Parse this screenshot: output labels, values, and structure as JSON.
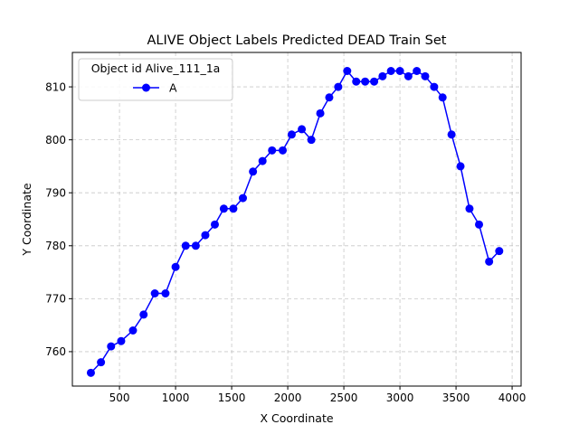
{
  "chart_data": {
    "type": "line",
    "title": "ALIVE Object Labels Predicted DEAD Train Set",
    "xlabel": "X Coordinate",
    "ylabel": "Y Coordinate",
    "xlim": [
      80,
      4080
    ],
    "ylim": [
      753.5,
      816.5
    ],
    "xticks": [
      500,
      1000,
      1500,
      2000,
      2500,
      3000,
      3500,
      4000
    ],
    "yticks": [
      760,
      770,
      780,
      790,
      800,
      810
    ],
    "grid": true,
    "legend": {
      "title": "Object id Alive_111_1a",
      "placement": "top-left"
    },
    "series": [
      {
        "name": "A",
        "color": "#0000ff",
        "marker": "circle",
        "x": [
          245,
          335,
          425,
          515,
          620,
          715,
          815,
          910,
          1000,
          1090,
          1180,
          1265,
          1350,
          1430,
          1515,
          1600,
          1690,
          1775,
          1860,
          1955,
          2035,
          2125,
          2210,
          2290,
          2370,
          2450,
          2530,
          2610,
          2690,
          2770,
          2845,
          2920,
          3000,
          3075,
          3150,
          3225,
          3305,
          3380,
          3460,
          3540,
          3620,
          3705,
          3795,
          3885
        ],
        "y": [
          756,
          758,
          761,
          762,
          764,
          767,
          771,
          771,
          776,
          780,
          780,
          782,
          784,
          787,
          787,
          789,
          794,
          796,
          798,
          798,
          801,
          802,
          800,
          805,
          808,
          810,
          813,
          811,
          811,
          811,
          812,
          813,
          813,
          812,
          813,
          812,
          810,
          808,
          801,
          795,
          787,
          784,
          777,
          779
        ]
      }
    ]
  }
}
